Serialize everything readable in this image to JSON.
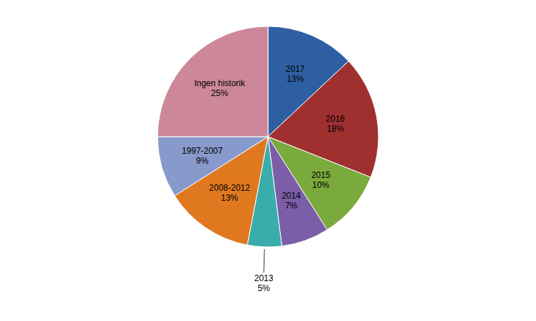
{
  "chart_data": {
    "type": "pie",
    "categories": [
      "2017",
      "2016",
      "2015",
      "2014",
      "2013",
      "2008-2012",
      "1997-2007",
      "Ingen historik"
    ],
    "values": [
      13,
      18,
      10,
      7,
      5,
      13,
      9,
      25
    ],
    "value_labels": [
      "13%",
      "18%",
      "10%",
      "7%",
      "5%",
      "13%",
      "9%",
      "25%"
    ],
    "colors": [
      "#2E5FA3",
      "#A03030",
      "#7BAA3C",
      "#7B5EA7",
      "#3AACAC",
      "#E07820",
      "#8899CC",
      "#CC8899"
    ],
    "data_labels": true
  }
}
